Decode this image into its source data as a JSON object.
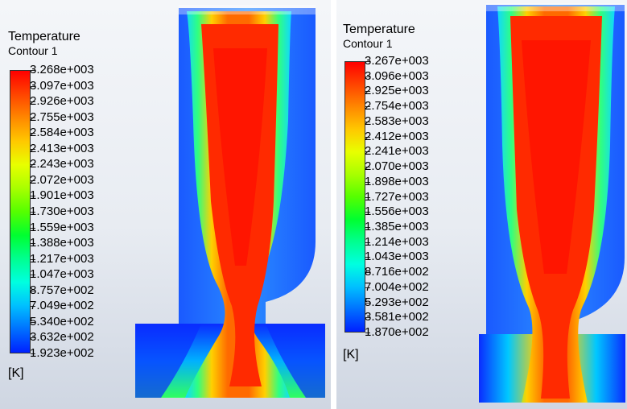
{
  "panels": [
    {
      "title": "Temperature",
      "subtitle": "Contour 1",
      "unit": "[K]",
      "levels": [
        "3.268e+003",
        "3.097e+003",
        "2.926e+003",
        "2.755e+003",
        "2.584e+003",
        "2.413e+003",
        "2.243e+003",
        "2.072e+003",
        "1.901e+003",
        "1.730e+003",
        "1.559e+003",
        "1.388e+003",
        "1.217e+003",
        "1.047e+003",
        "8.757e+002",
        "7.049e+002",
        "5.340e+002",
        "3.632e+002",
        "1.923e+002"
      ]
    },
    {
      "title": "Temperature",
      "subtitle": "Contour 1",
      "unit": "[K]",
      "levels": [
        "3.267e+003",
        "3.096e+003",
        "2.925e+003",
        "2.754e+003",
        "2.583e+003",
        "2.412e+003",
        "2.241e+003",
        "2.070e+003",
        "1.898e+003",
        "1.727e+003",
        "1.556e+003",
        "1.385e+003",
        "1.214e+003",
        "1.043e+003",
        "8.716e+002",
        "7.004e+002",
        "5.293e+002",
        "3.581e+002",
        "1.870e+002"
      ]
    }
  ],
  "colormap": [
    "#ff0000",
    "#ff4400",
    "#ff8800",
    "#ffc800",
    "#e8ff00",
    "#a8ff00",
    "#55ff00",
    "#00ff30",
    "#00ff90",
    "#00ffe0",
    "#00c0ff",
    "#0070ff",
    "#0020ff"
  ]
}
